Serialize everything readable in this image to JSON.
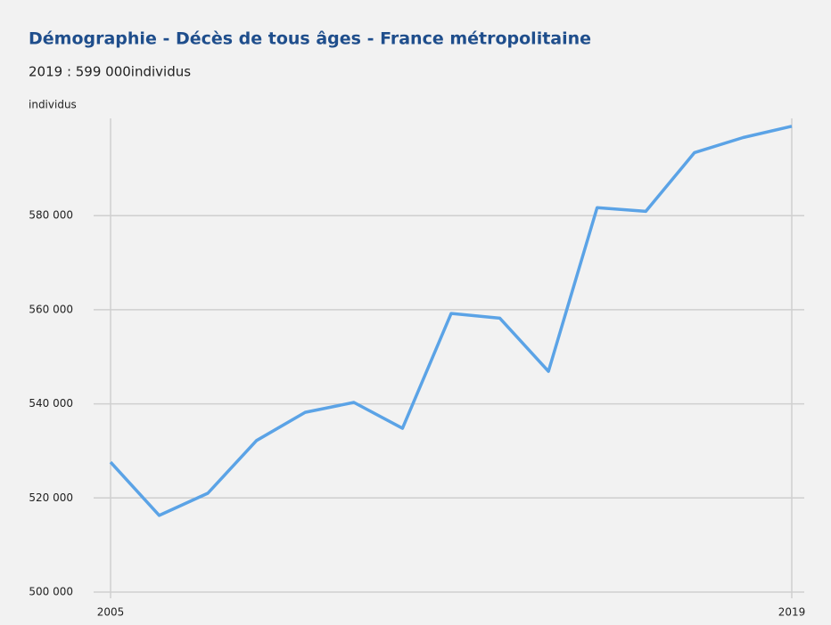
{
  "chart_data": {
    "type": "line",
    "title": "Démographie - Décès de tous âges - France métropolitaine",
    "subtitle": "2019 : 599 000individus",
    "y_label": "individus",
    "x": [
      2005,
      2006,
      2007,
      2008,
      2009,
      2010,
      2011,
      2012,
      2013,
      2014,
      2015,
      2016,
      2017,
      2018,
      2019
    ],
    "series": [
      {
        "name": "individus",
        "color": "#5ba3e6",
        "values": [
          527600,
          516300,
          521000,
          532200,
          538200,
          540300,
          534800,
          559200,
          558200,
          546900,
          581700,
          580900,
          593400,
          596600,
          599000
        ]
      }
    ],
    "xlim": [
      2005,
      2019
    ],
    "xticks": [
      2005,
      2019
    ],
    "ylim": [
      500000,
      600000
    ],
    "yticks": [
      {
        "value": 500000,
        "label": "500 000"
      },
      {
        "value": 520000,
        "label": "520 000"
      },
      {
        "value": 540000,
        "label": "540 000"
      },
      {
        "value": 560000,
        "label": "560 000"
      },
      {
        "value": 580000,
        "label": "580 000"
      }
    ],
    "grid": true
  }
}
